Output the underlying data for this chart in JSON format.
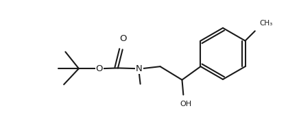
{
  "background_color": "#ffffff",
  "line_color": "#1a1a1a",
  "line_width": 1.5,
  "fig_width": 4.36,
  "fig_height": 1.68,
  "dpi": 100,
  "font_size": 8.0,
  "xlim": [
    0.0,
    10.5
  ],
  "ylim": [
    0.8,
    5.2
  ]
}
